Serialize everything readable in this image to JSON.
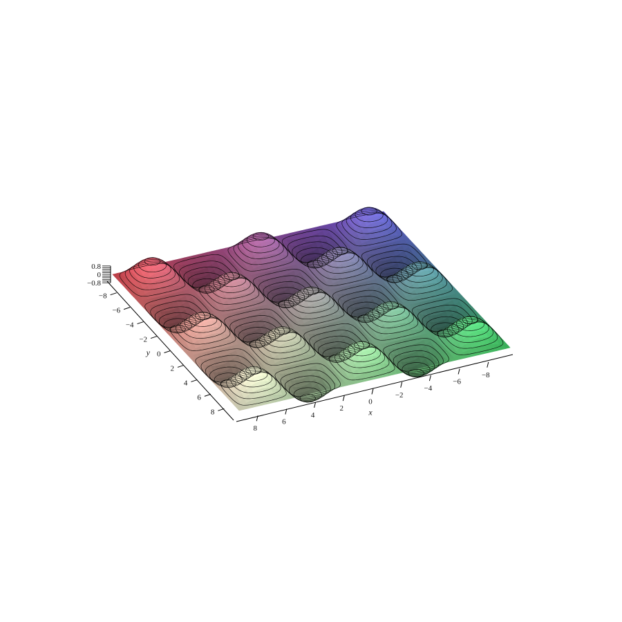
{
  "chart_data": {
    "type": "surface3d",
    "title": "",
    "function_note": "",
    "x": {
      "label": "x",
      "range": [
        -9.4,
        9.4
      ],
      "ticks": [
        -8,
        -6,
        -4,
        -2,
        0,
        2,
        4,
        6,
        8
      ],
      "tick_labels": [
        "−8",
        "−6",
        "−4",
        "−2",
        "0",
        "2",
        "4",
        "6",
        "8"
      ]
    },
    "y": {
      "label": "y",
      "range": [
        -9.4,
        9.4
      ],
      "ticks": [
        -8,
        -6,
        -4,
        -2,
        0,
        2,
        4,
        6,
        8
      ],
      "tick_labels": [
        "−8",
        "−6",
        "−4",
        "−2",
        "0",
        "2",
        "4",
        "6",
        "8"
      ]
    },
    "z": {
      "label": "",
      "range": [
        -0.8,
        0.8
      ],
      "ticks": [
        -0.8,
        0,
        0.8
      ],
      "tick_labels": [
        "−0.8",
        "0",
        "0.8"
      ]
    },
    "surface": {
      "shape": "egg-carton",
      "amplitude": 0.8,
      "period_cells": 5,
      "contour_levels": 6
    },
    "colors": {
      "corner_x_neg_y_neg": "#6a5cf0",
      "corner_x_pos_y_neg": "#f0505a",
      "corner_x_neg_y_pos": "#48e070",
      "corner_x_pos_y_pos": "#ffffe0",
      "contour_line": "#000000",
      "axis_line": "#000000"
    },
    "grid": false,
    "legend": "none"
  }
}
